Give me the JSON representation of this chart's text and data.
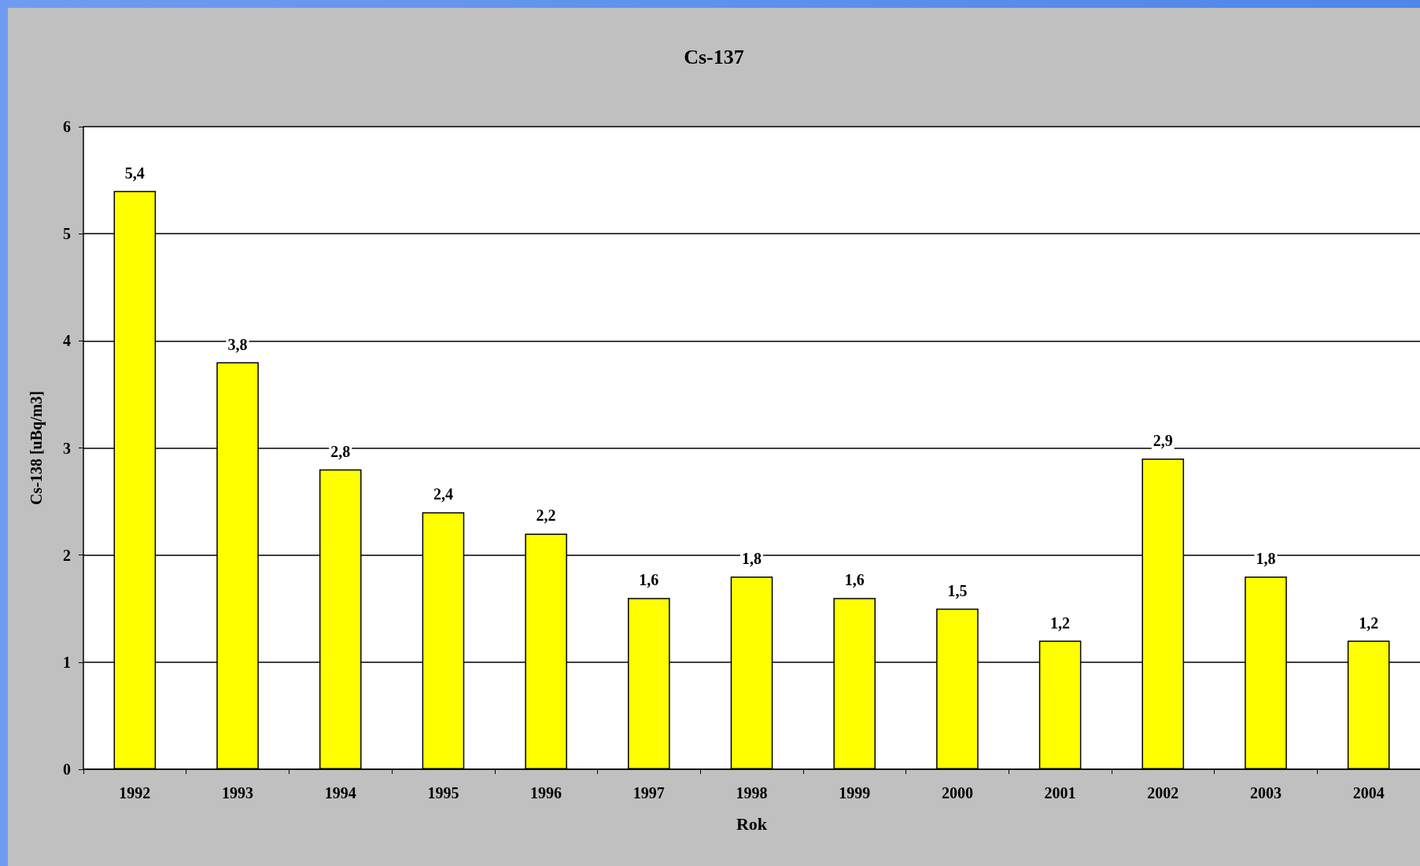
{
  "chart_data": {
    "type": "bar",
    "title": "Cs-137",
    "xlabel": "Rok",
    "ylabel": "Cs-138 [uBq/m3]",
    "categories": [
      "1992",
      "1993",
      "1994",
      "1995",
      "1996",
      "1997",
      "1998",
      "1999",
      "2000",
      "2001",
      "2002",
      "2003",
      "2004"
    ],
    "values": [
      5.4,
      3.8,
      2.8,
      2.4,
      2.2,
      1.6,
      1.8,
      1.6,
      1.5,
      1.2,
      2.9,
      1.8,
      1.2
    ],
    "value_labels": [
      "5,4",
      "3,8",
      "2,8",
      "2,4",
      "2,2",
      "1,6",
      "1,8",
      "1,6",
      "1,5",
      "1,2",
      "2,9",
      "1,8",
      "1,2"
    ],
    "color": "#ffff00",
    "ylim": [
      0,
      6
    ],
    "yticks": [
      0,
      1,
      2,
      3,
      4,
      5,
      6
    ],
    "grid": "y"
  }
}
